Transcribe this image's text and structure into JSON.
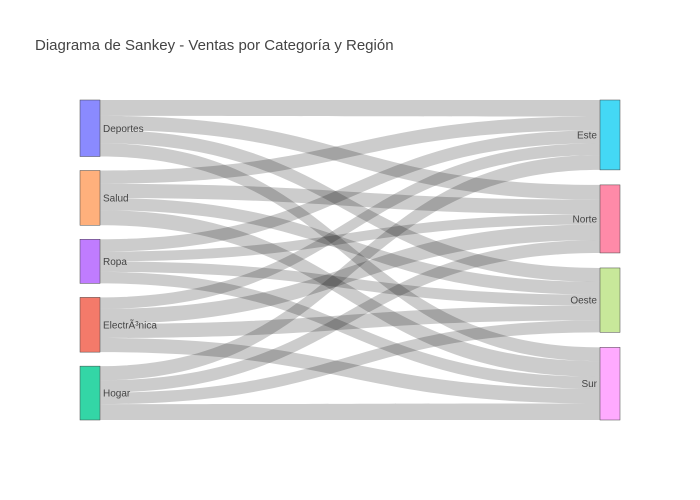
{
  "chart_data": {
    "type": "sankey",
    "title": "Diagrama de Sankey - Ventas por Categoría y Región",
    "link_color": "#000000",
    "sources": [
      {
        "name": "Deportes",
        "color": "#8a8aff"
      },
      {
        "name": "Salud",
        "color": "#ffb07c"
      },
      {
        "name": "Ropa",
        "color": "#c07cff"
      },
      {
        "name": "ElectrÃ³nica",
        "color": "#f47a6a"
      },
      {
        "name": "Hogar",
        "color": "#33d6a6"
      }
    ],
    "targets": [
      {
        "name": "Este",
        "color": "#44d8f5"
      },
      {
        "name": "Norte",
        "color": "#ff8aa8"
      },
      {
        "name": "Oeste",
        "color": "#c8e89a"
      },
      {
        "name": "Sur",
        "color": "#ffaaff"
      }
    ],
    "links": [
      {
        "source": "Deportes",
        "target": "Este",
        "value": 18
      },
      {
        "source": "Deportes",
        "target": "Norte",
        "value": 16
      },
      {
        "source": "Deportes",
        "target": "Oeste",
        "value": 15
      },
      {
        "source": "Deportes",
        "target": "Sur",
        "value": 15
      },
      {
        "source": "Salud",
        "target": "Este",
        "value": 15
      },
      {
        "source": "Salud",
        "target": "Norte",
        "value": 16
      },
      {
        "source": "Salud",
        "target": "Oeste",
        "value": 14
      },
      {
        "source": "Salud",
        "target": "Sur",
        "value": 17
      },
      {
        "source": "Ropa",
        "target": "Este",
        "value": 14
      },
      {
        "source": "Ropa",
        "target": "Norte",
        "value": 11
      },
      {
        "source": "Ropa",
        "target": "Oeste",
        "value": 12
      },
      {
        "source": "Ropa",
        "target": "Sur",
        "value": 13
      },
      {
        "source": "ElectrÃ³nica",
        "target": "Este",
        "value": 13
      },
      {
        "source": "ElectrÃ³nica",
        "target": "Norte",
        "value": 17
      },
      {
        "source": "ElectrÃ³nica",
        "target": "Oeste",
        "value": 16
      },
      {
        "source": "ElectrÃ³nica",
        "target": "Sur",
        "value": 16
      },
      {
        "source": "Hogar",
        "target": "Este",
        "value": 16
      },
      {
        "source": "Hogar",
        "target": "Norte",
        "value": 14
      },
      {
        "source": "Hogar",
        "target": "Oeste",
        "value": 13
      },
      {
        "source": "Hogar",
        "target": "Sur",
        "value": 18
      }
    ]
  }
}
